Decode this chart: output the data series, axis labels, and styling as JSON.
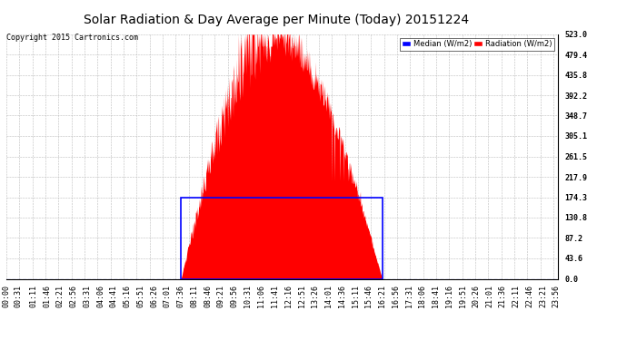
{
  "title": "Solar Radiation & Day Average per Minute (Today) 20151224",
  "copyright": "Copyright 2015 Cartronics.com",
  "yticks": [
    0.0,
    43.6,
    87.2,
    130.8,
    174.3,
    217.9,
    261.5,
    305.1,
    348.7,
    392.2,
    435.8,
    479.4,
    523.0
  ],
  "ymax": 523.0,
  "ymin": 0.0,
  "radiation_color": "#FF0000",
  "median_color": "#0000FF",
  "background_color": "#FFFFFF",
  "grid_color": "#BBBBBB",
  "title_fontsize": 10,
  "tick_fontsize": 6.0,
  "total_minutes": 1440,
  "sunrise_minute": 456,
  "sunset_minute": 981,
  "peak_minute": 696,
  "peak_value": 523.0,
  "median_start_minute": 456,
  "median_end_minute": 981,
  "median_top": 174.3,
  "x_tick_labels": [
    "00:00",
    "00:31",
    "01:11",
    "01:46",
    "02:21",
    "02:56",
    "03:31",
    "04:06",
    "04:41",
    "05:16",
    "05:51",
    "06:26",
    "07:01",
    "07:36",
    "08:11",
    "08:46",
    "09:21",
    "09:56",
    "10:31",
    "11:06",
    "11:41",
    "12:16",
    "12:51",
    "13:26",
    "14:01",
    "14:36",
    "15:11",
    "15:46",
    "16:21",
    "16:56",
    "17:31",
    "18:06",
    "18:41",
    "19:16",
    "19:51",
    "20:26",
    "21:01",
    "21:36",
    "22:11",
    "22:46",
    "23:21",
    "23:56"
  ],
  "x_tick_minutes": [
    0,
    31,
    71,
    106,
    141,
    176,
    211,
    246,
    281,
    316,
    351,
    386,
    421,
    456,
    491,
    526,
    561,
    596,
    631,
    666,
    701,
    736,
    771,
    806,
    841,
    876,
    911,
    946,
    981,
    1016,
    1051,
    1086,
    1121,
    1156,
    1191,
    1226,
    1261,
    1296,
    1331,
    1366,
    1401,
    1436
  ]
}
